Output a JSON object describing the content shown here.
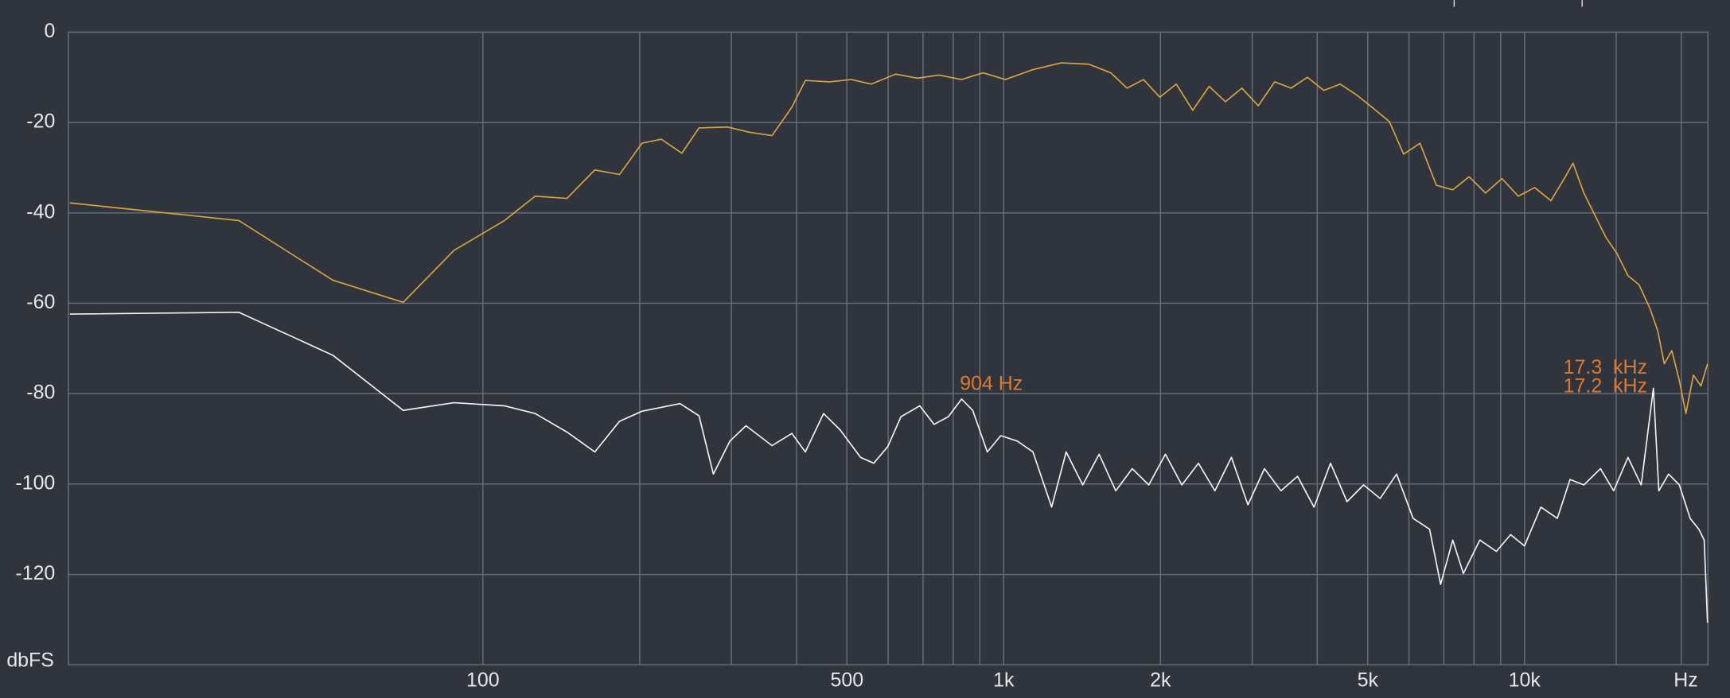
{
  "chart_data": {
    "type": "line",
    "xscale": "log",
    "grid": true,
    "xlabel": "Hz",
    "ylabel": "dbFS",
    "xlim": [
      16,
      22500
    ],
    "ylim": [
      -140,
      0
    ],
    "yticks": [
      0,
      -20,
      -40,
      -60,
      -80,
      -100,
      -120
    ],
    "xticks": [
      100,
      {
        "value": 500,
        "label": "500"
      },
      {
        "value": 1000,
        "label": "1k"
      },
      {
        "value": 2000,
        "label": "2k"
      },
      {
        "value": 5000,
        "label": "5k"
      },
      {
        "value": 10000,
        "label": "10k"
      }
    ],
    "xminorticks": [
      200,
      300,
      400,
      600,
      700,
      800,
      900,
      3000,
      4000,
      6000,
      7000,
      8000,
      9000,
      15000,
      20000
    ],
    "annotations": [
      "904 Hz",
      "17.3  kHz",
      "17.2  kHz"
    ],
    "series": [
      {
        "color": "#d9a441",
        "x": [
          16.1,
          34,
          51.5,
          70.3,
          88,
          110,
          126,
          145,
          164,
          183,
          202,
          220,
          241,
          260,
          295,
          326,
          359,
          392,
          416,
          463,
          510,
          557,
          620,
          683,
          751,
          830,
          913,
          1007,
          1138,
          1290,
          1457,
          1605,
          1725,
          1855,
          1994,
          2145,
          2306,
          2480,
          2666,
          2866,
          3082,
          3313,
          3562,
          3830,
          4118,
          4427,
          4760,
          5117,
          5501,
          5860,
          6300,
          6773,
          7281,
          7828,
          8416,
          9048,
          9727,
          10460,
          11240,
          11980,
          12390,
          13000,
          13650,
          14330,
          15050,
          15800,
          16590,
          17420,
          18020,
          18550,
          19180,
          19830,
          20410,
          21100,
          21820,
          22460
        ],
        "values": [
          -37.8,
          -41.7,
          -54.9,
          -59.8,
          -48.3,
          -41.7,
          -36.3,
          -36.8,
          -30.5,
          -31.5,
          -24.6,
          -23.7,
          -26.8,
          -21.2,
          -21,
          -22.2,
          -22.9,
          -16.6,
          -10.7,
          -11,
          -10.5,
          -11.5,
          -9.3,
          -10.2,
          -9.5,
          -10.5,
          -9,
          -10.5,
          -8.3,
          -6.8,
          -7.1,
          -9,
          -12.4,
          -10.5,
          -14.4,
          -11.5,
          -17.3,
          -12,
          -15.4,
          -12.4,
          -16.3,
          -11,
          -12.4,
          -10,
          -12.9,
          -11.5,
          -13.9,
          -16.8,
          -19.8,
          -27,
          -24.6,
          -33.9,
          -34.9,
          -32,
          -35.6,
          -32.4,
          -36.3,
          -34.4,
          -37.3,
          -32,
          -29,
          -35.6,
          -40.5,
          -45.4,
          -49,
          -53.9,
          -55.9,
          -61.2,
          -66.1,
          -73.4,
          -70.5,
          -77.1,
          -84.4,
          -75.9,
          -78.3,
          -73.4
        ]
      },
      {
        "color": "#f2f2f2",
        "x": [
          16.1,
          34,
          51.5,
          70.3,
          88,
          110,
          126,
          145,
          164,
          183,
          202,
          239,
          260,
          277,
          298,
          320,
          359,
          392,
          416,
          451,
          485,
          531,
          563,
          599,
          635,
          690,
          735,
          783,
          830,
          872,
          930,
          987,
          1062,
          1138,
          1236,
          1318,
          1418,
          1525,
          1641,
          1765,
          1899,
          2044,
          2198,
          2365,
          2544,
          2737,
          2944,
          3167,
          3407,
          3666,
          3943,
          4242,
          4563,
          4909,
          5281,
          5681,
          6111,
          6573,
          6901,
          7281,
          7631,
          8208,
          8830,
          9406,
          9998,
          10750,
          11560,
          12230,
          13000,
          13990,
          14830,
          15800,
          16750,
          17680,
          18110,
          18910,
          19830,
          20800,
          21610,
          22130,
          22460
        ],
        "values": [
          -62.4,
          -62,
          -71.5,
          -83.7,
          -82,
          -82.7,
          -84.4,
          -88.5,
          -92.9,
          -86.1,
          -83.9,
          -82.2,
          -84.9,
          -97.8,
          -90.5,
          -87.1,
          -91.5,
          -88.8,
          -92.9,
          -84.4,
          -88,
          -94.1,
          -95.4,
          -91.7,
          -85.1,
          -82.7,
          -86.8,
          -85.1,
          -81.2,
          -83.7,
          -92.9,
          -89.3,
          -90.5,
          -92.9,
          -105.1,
          -92.9,
          -100.2,
          -93.4,
          -101.5,
          -96.6,
          -100.2,
          -93.4,
          -100.2,
          -95.4,
          -101.5,
          -94.1,
          -104.6,
          -96.6,
          -101.5,
          -98.3,
          -105.1,
          -95.4,
          -103.9,
          -100.2,
          -103.2,
          -97.8,
          -107.6,
          -110,
          -122.2,
          -112.4,
          -119.8,
          -112.4,
          -114.9,
          -111.2,
          -113.7,
          -105.1,
          -107.6,
          -99,
          -100.2,
          -96.6,
          -101.5,
          -94.1,
          -100.2,
          -78.8,
          -101.5,
          -97.8,
          -100.2,
          -107.6,
          -110,
          -112.4,
          -130.7
        ]
      }
    ]
  }
}
